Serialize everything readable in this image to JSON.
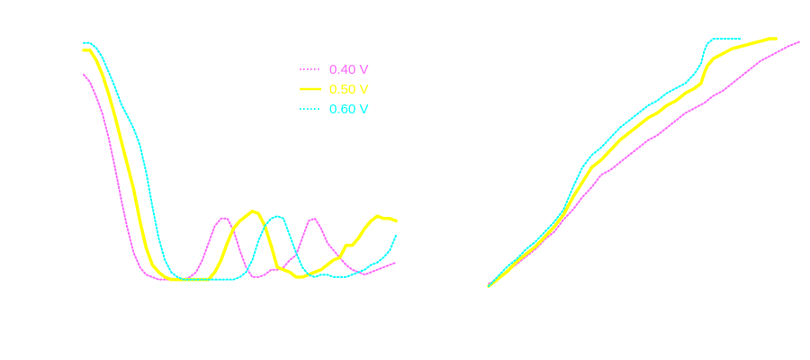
{
  "chart_data": [
    {
      "type": "line",
      "panel": "left",
      "title": "",
      "xlabel": "",
      "ylabel": "",
      "grid": false,
      "legend_placement": "top-center",
      "xlim": [
        0,
        100
      ],
      "ylim": [
        0,
        100
      ],
      "series": [
        {
          "name": "0.40 V",
          "style": "dotted",
          "x": [
            0,
            2,
            4,
            6,
            8,
            10,
            12,
            14,
            16,
            18,
            20,
            22,
            24,
            26,
            28,
            30,
            32,
            34,
            36,
            38,
            40,
            42,
            44,
            46,
            48,
            50,
            52,
            54,
            56,
            58,
            60,
            62,
            64,
            66,
            68,
            70,
            72,
            74,
            76,
            78,
            80,
            82,
            84,
            86,
            88,
            90,
            92,
            94,
            96,
            98,
            100
          ],
          "y": [
            86,
            83,
            77,
            70,
            60,
            48,
            35,
            23,
            13,
            7,
            4,
            3,
            2,
            2,
            2,
            2,
            2,
            3,
            5,
            10,
            17,
            24,
            27,
            27,
            22,
            14,
            7,
            3,
            3,
            4,
            6,
            6,
            7,
            10,
            12,
            19,
            26,
            27,
            23,
            17,
            14,
            11,
            8,
            6,
            5,
            4,
            5,
            6,
            7,
            8,
            9
          ]
        },
        {
          "name": "0.50 V",
          "style": "solid",
          "x": [
            0,
            2,
            4,
            6,
            8,
            10,
            12,
            14,
            16,
            18,
            20,
            22,
            24,
            26,
            28,
            30,
            32,
            34,
            36,
            38,
            40,
            42,
            44,
            46,
            48,
            50,
            52,
            54,
            56,
            58,
            60,
            62,
            64,
            66,
            68,
            70,
            72,
            74,
            76,
            78,
            80,
            82,
            84,
            86,
            88,
            90,
            92,
            94,
            96,
            98,
            100
          ],
          "y": [
            96,
            96,
            92,
            86,
            78,
            69,
            59,
            49,
            39,
            26,
            15,
            8,
            5,
            3,
            2,
            2,
            2,
            2,
            2,
            2,
            2,
            5,
            10,
            17,
            23,
            26,
            28,
            30,
            29,
            24,
            16,
            7,
            6,
            5,
            3,
            3,
            4,
            5,
            6,
            8,
            10,
            11,
            16,
            16,
            19,
            23,
            26,
            28,
            27,
            27,
            26
          ]
        },
        {
          "name": "0.60 V",
          "style": "dotted",
          "x": [
            0,
            2,
            4,
            6,
            8,
            10,
            12,
            14,
            16,
            18,
            20,
            22,
            24,
            26,
            28,
            30,
            32,
            34,
            36,
            38,
            40,
            42,
            44,
            46,
            48,
            50,
            52,
            54,
            56,
            58,
            60,
            62,
            64,
            66,
            68,
            70,
            72,
            74,
            76,
            78,
            80,
            82,
            84,
            86,
            88,
            90,
            92,
            94,
            96,
            98,
            100
          ],
          "y": [
            99,
            99,
            97,
            93,
            87,
            81,
            74,
            69,
            64,
            57,
            46,
            32,
            19,
            10,
            5,
            3,
            2,
            2,
            2,
            2,
            2,
            2,
            2,
            2,
            2,
            3,
            5,
            10,
            18,
            24,
            27,
            28,
            27,
            20,
            13,
            7,
            4,
            3,
            4,
            4,
            3,
            3,
            3,
            4,
            5,
            6,
            8,
            9,
            11,
            14,
            20
          ]
        }
      ]
    },
    {
      "type": "line",
      "panel": "right",
      "title": "",
      "xlabel": "",
      "ylabel": "",
      "grid": false,
      "xlim": [
        0,
        100
      ],
      "ylim": [
        0,
        100
      ],
      "series": [
        {
          "name": "0.40 V",
          "style": "dotted",
          "x": [
            0,
            3,
            6,
            9,
            12,
            15,
            18,
            21,
            24,
            27,
            30,
            33,
            36,
            39,
            42,
            45,
            48,
            51,
            54,
            57,
            60,
            63,
            66,
            69,
            72,
            75,
            78,
            81,
            84,
            87,
            90,
            93,
            96,
            100
          ],
          "y": [
            1,
            3,
            6,
            9,
            12,
            15,
            19,
            22,
            27,
            31,
            36,
            40,
            45,
            47,
            50,
            53,
            56,
            59,
            61,
            64,
            67,
            70,
            72,
            74,
            77,
            79,
            82,
            85,
            88,
            91,
            93,
            95,
            97,
            99
          ]
        },
        {
          "name": "0.50 V",
          "style": "solid",
          "x": [
            0,
            3,
            6,
            9,
            12,
            15,
            18,
            21,
            24,
            27,
            30,
            33,
            36,
            39,
            42,
            45,
            48,
            51,
            54,
            57,
            60,
            63,
            66,
            68,
            69,
            70,
            72,
            75,
            78,
            81,
            84,
            87,
            90,
            92
          ],
          "y": [
            0,
            3,
            6,
            10,
            13,
            16,
            20,
            24,
            29,
            36,
            42,
            48,
            51,
            55,
            59,
            62,
            65,
            68,
            70,
            73,
            75,
            78,
            80,
            82,
            86,
            89,
            92,
            94,
            96,
            97,
            98,
            99,
            100,
            100
          ]
        },
        {
          "name": "0.60 V",
          "style": "dotted",
          "x": [
            0,
            3,
            6,
            9,
            12,
            15,
            18,
            21,
            24,
            27,
            30,
            33,
            36,
            39,
            42,
            45,
            48,
            51,
            54,
            57,
            60,
            63,
            66,
            68,
            69,
            70,
            72,
            75,
            78,
            81
          ],
          "y": [
            0,
            4,
            8,
            11,
            15,
            18,
            22,
            26,
            31,
            40,
            48,
            53,
            56,
            60,
            64,
            67,
            70,
            73,
            75,
            78,
            80,
            82,
            86,
            90,
            95,
            98,
            100,
            100,
            100,
            100
          ]
        }
      ]
    }
  ],
  "legend": {
    "entries": [
      {
        "label": "0.40 V",
        "color": "#ff66ff",
        "style": "dotted"
      },
      {
        "label": "0.50 V",
        "color": "#ffff00",
        "style": "solid"
      },
      {
        "label": "0.60 V",
        "color": "#00ffff",
        "style": "dotted"
      }
    ]
  },
  "colors": {
    "series_040": "#ff66ff",
    "series_050": "#ffff00",
    "series_060": "#00ffff",
    "background": "#ffffff"
  }
}
